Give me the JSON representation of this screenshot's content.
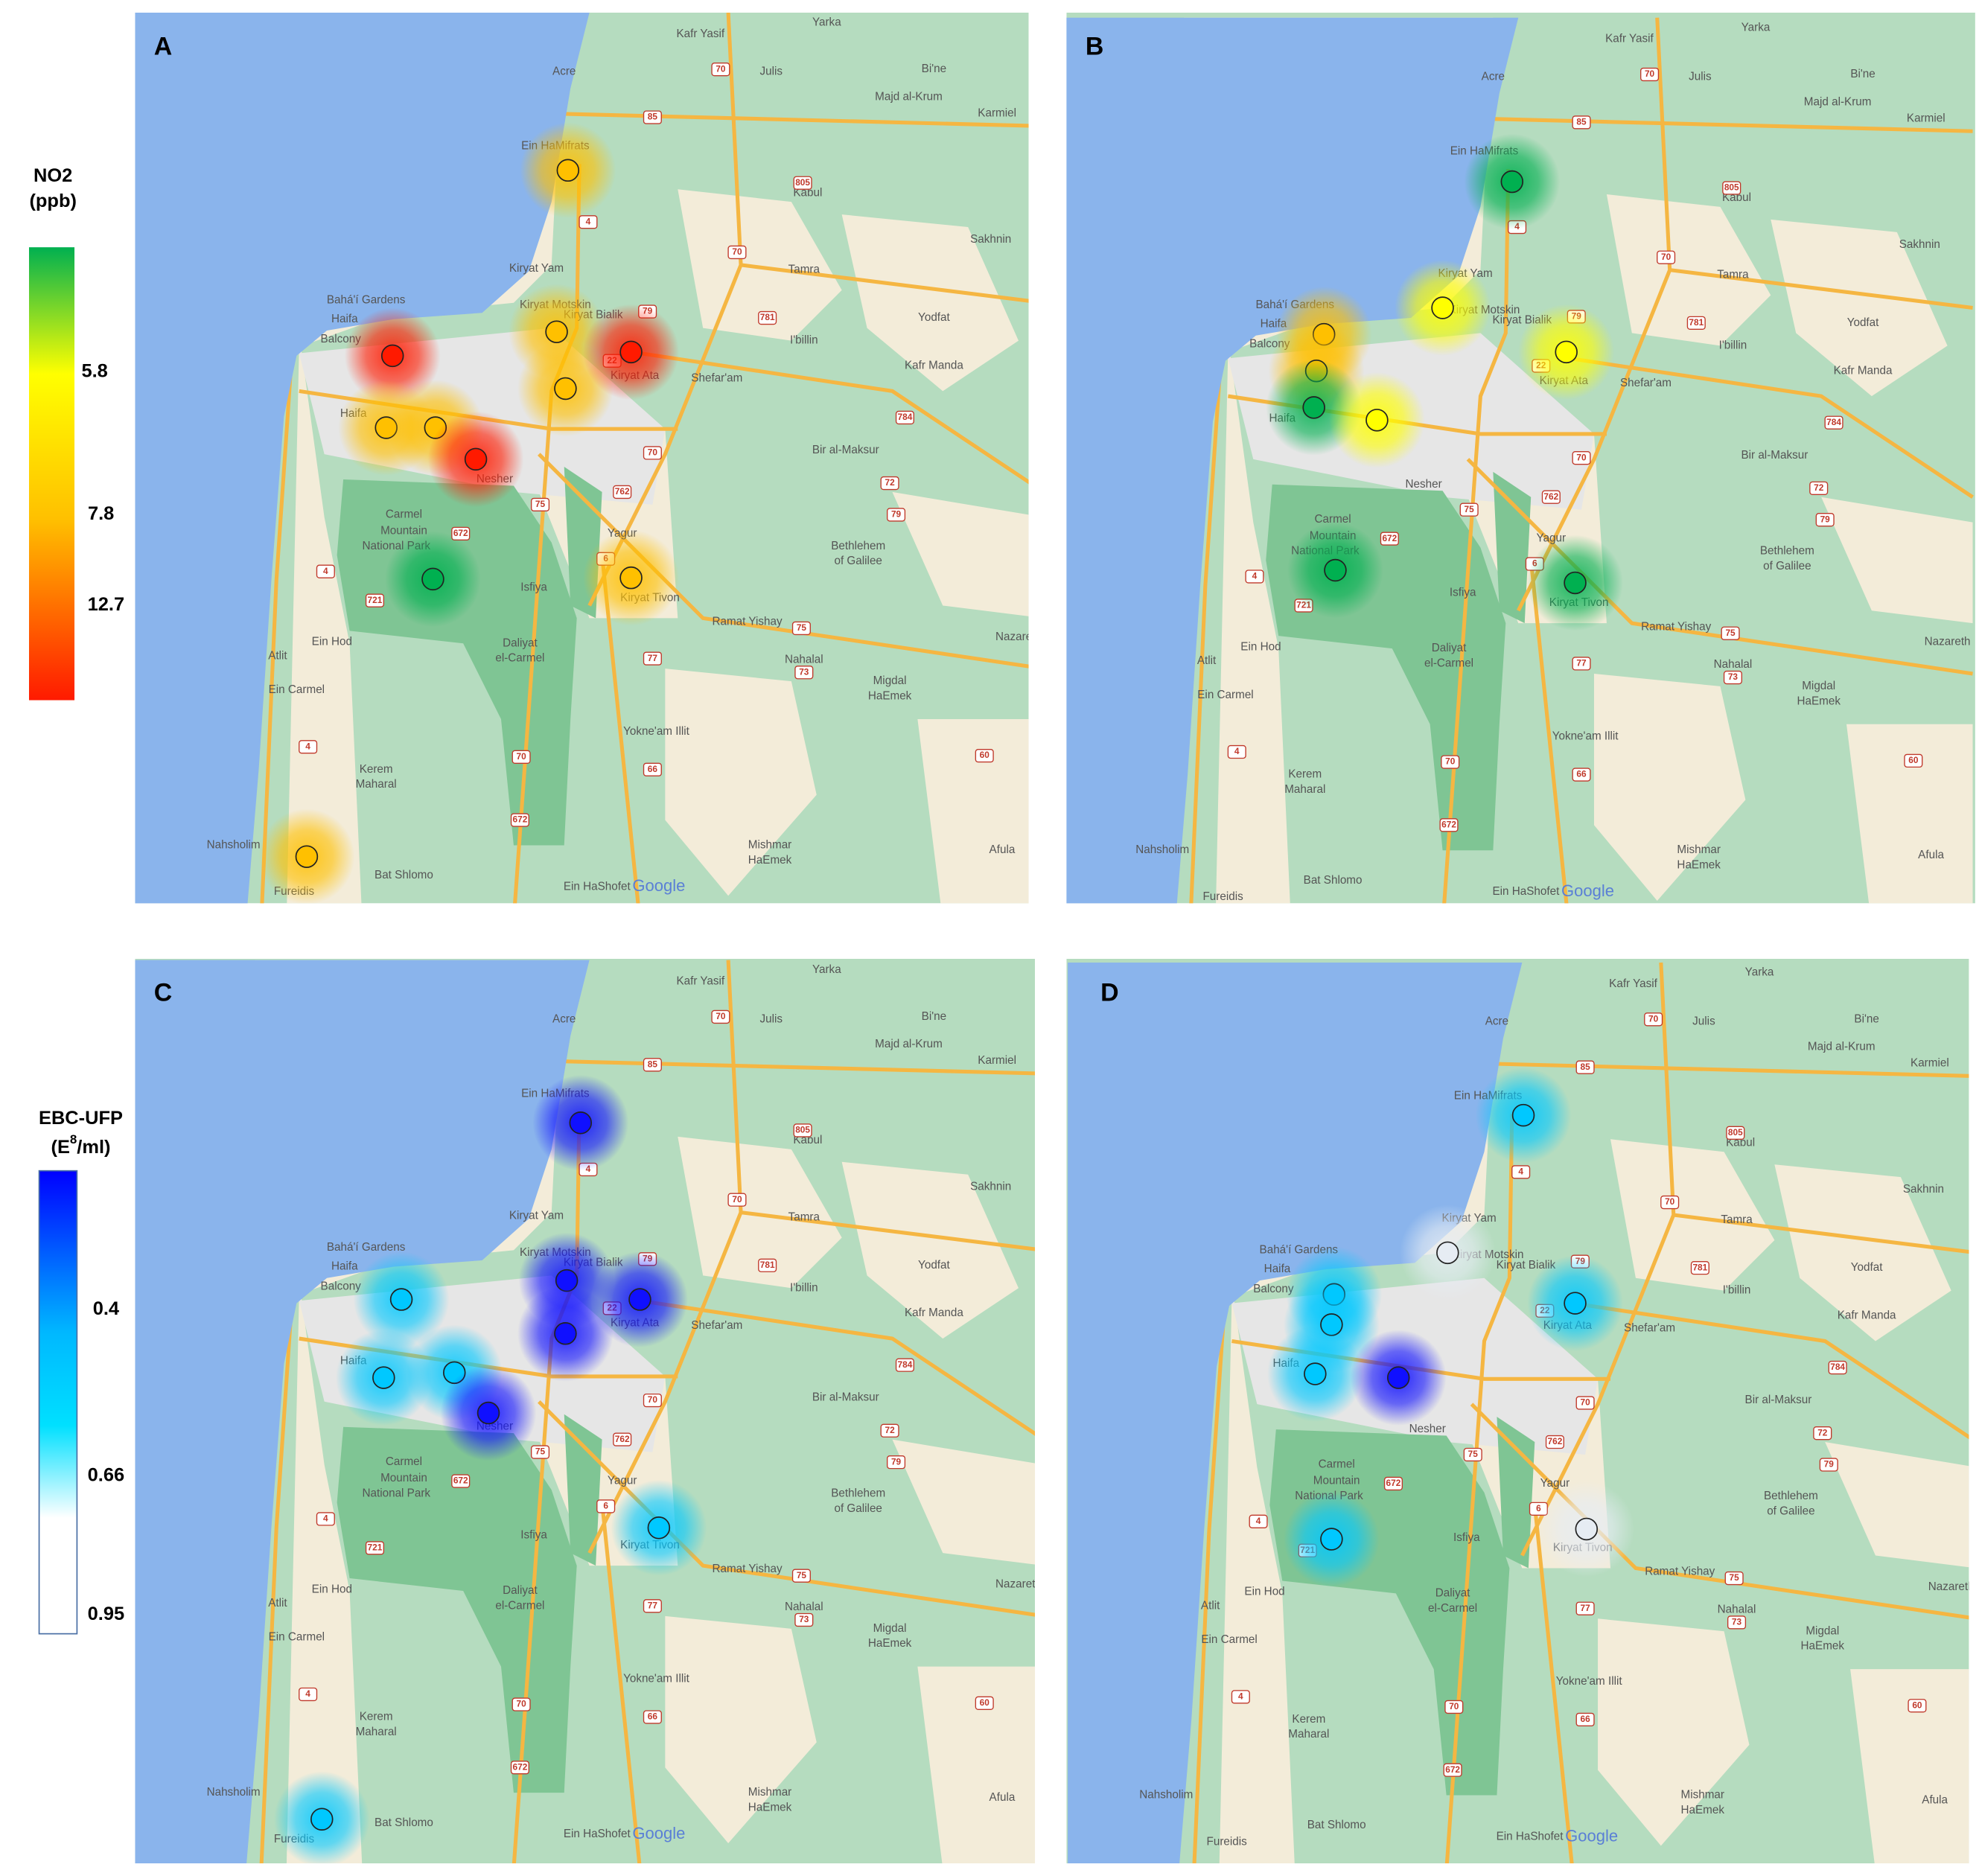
{
  "panels": [
    {
      "label": "A"
    },
    {
      "label": "B"
    },
    {
      "label": "C"
    },
    {
      "label": "D"
    }
  ],
  "legends": [
    {
      "title": "NO2",
      "unit": "(ppb)",
      "ticks": [
        "5.8",
        "7.8",
        "12.7"
      ]
    },
    {
      "title": "EBC-UFP",
      "unit_prefix": "(E",
      "unit_sup": "8",
      "unit_suffix": "/ml)",
      "ticks": [
        "0.4",
        "0.66",
        "0.95"
      ]
    }
  ],
  "map": {
    "places": [
      "Kafr Yasif",
      "Yarka",
      "Julis",
      "Acre",
      "Bi'ne",
      "Majd al-Krum",
      "Karmiel",
      "Ein HaMifrats",
      "Kabul",
      "Sakhnin",
      "Tamra",
      "Yodfat",
      "Kiryat Yam",
      "Kiryat Motskin",
      "Kiryat Bialik",
      "I'billin",
      "Kafr Manda",
      "Kiryat Ata",
      "Shefar'am",
      "Bahá'í Gardens",
      "Haifa",
      "Balcony",
      "Haifa",
      "Bir al-Maksur",
      "Nesher",
      "Carmel",
      "Mountain",
      "National Park",
      "Yagur",
      "Bethlehem",
      "of Galilee",
      "Isfiya",
      "Kiryat Tivon",
      "Ramat Yishay",
      "Ein Hod",
      "Daliyat",
      "el-Carmel",
      "Atlit",
      "Nahalal",
      "Nazareth",
      "Ein Carmel",
      "Migdal",
      "HaEmek",
      "Yokne'am Illit",
      "Kerem",
      "Maharal",
      "Nahsholim",
      "Mishmar",
      "HaEmek",
      "Afula",
      "Bat Shlomo",
      "Fureidis",
      "Ein HaShofet"
    ],
    "roads": [
      "85",
      "70",
      "4",
      "805",
      "70",
      "79",
      "781",
      "22",
      "784",
      "70",
      "75",
      "762",
      "672",
      "6",
      "4",
      "721",
      "75",
      "77",
      "73",
      "72",
      "79",
      "70",
      "4",
      "66",
      "60",
      "672"
    ],
    "attribution": "Google"
  }
}
